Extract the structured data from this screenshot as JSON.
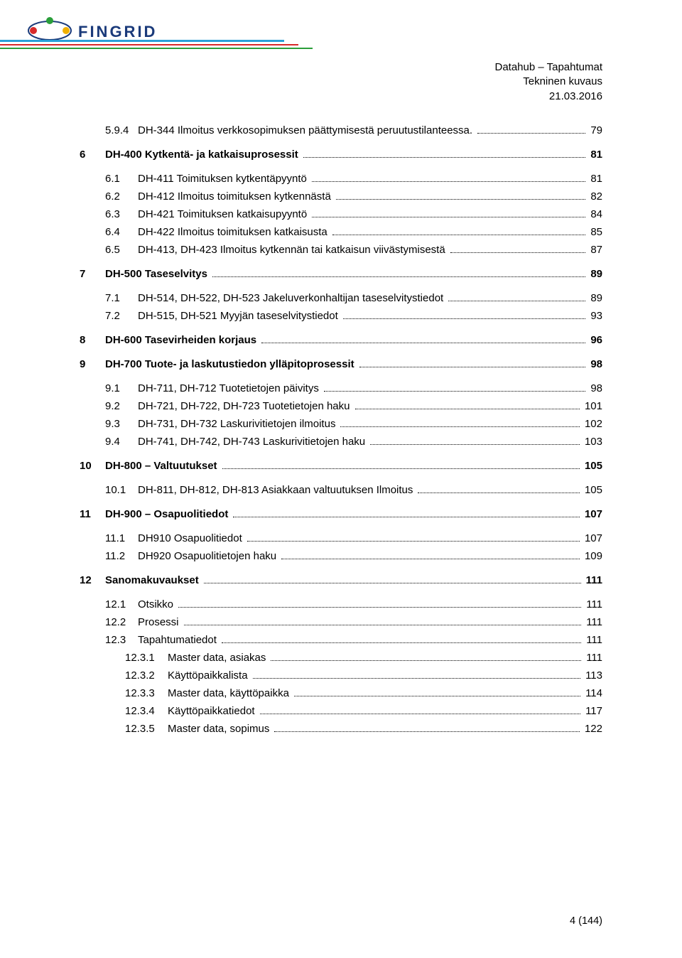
{
  "header": {
    "line1": "Datahub – Tapahtumat",
    "line2": "Tekninen kuvaus",
    "line3": "21.03.2016"
  },
  "logo": {
    "text": "FINGRID",
    "text_color": "#1a3a7a",
    "dot_top_color": "#2a9e3a",
    "dot_left_color": "#d82a2a",
    "dot_right_color": "#f0b000",
    "swoosh_colors": [
      "#2aa0d8",
      "#d82a2a",
      "#2a9e3a"
    ]
  },
  "toc": [
    {
      "lvl": 2,
      "num": "5.9.4",
      "label": "DH-344 Ilmoitus verkkosopimuksen päättymisestä peruutustilanteessa.",
      "page": "79",
      "bold": false
    },
    {
      "lvl": 1,
      "num": "6",
      "label": "DH-400 Kytkentä- ja katkaisuprosessit",
      "page": "81",
      "bold": true,
      "gap": true
    },
    {
      "lvl": 2,
      "num": "6.1",
      "label": "DH-411 Toimituksen kytkentäpyyntö",
      "page": "81",
      "bold": false,
      "gap": true
    },
    {
      "lvl": 2,
      "num": "6.2",
      "label": "DH-412 Ilmoitus toimituksen kytkennästä",
      "page": "82",
      "bold": false
    },
    {
      "lvl": 2,
      "num": "6.3",
      "label": "DH-421 Toimituksen katkaisupyyntö",
      "page": "84",
      "bold": false
    },
    {
      "lvl": 2,
      "num": "6.4",
      "label": "DH-422 Ilmoitus toimituksen katkaisusta",
      "page": "85",
      "bold": false
    },
    {
      "lvl": 2,
      "num": "6.5",
      "label": "DH-413, DH-423 Ilmoitus kytkennän tai katkaisun viivästymisestä",
      "page": "87",
      "bold": false
    },
    {
      "lvl": 1,
      "num": "7",
      "label": "DH-500 Taseselvitys",
      "page": "89",
      "bold": true,
      "gap": true
    },
    {
      "lvl": 2,
      "num": "7.1",
      "label": "DH-514, DH-522, DH-523 Jakeluverkonhaltijan taseselvitystiedot",
      "page": "89",
      "bold": false,
      "gap": true
    },
    {
      "lvl": 2,
      "num": "7.2",
      "label": "DH-515, DH-521 Myyjän taseselvitystiedot",
      "page": "93",
      "bold": false
    },
    {
      "lvl": 1,
      "num": "8",
      "label": "DH-600 Tasevirheiden korjaus",
      "page": "96",
      "bold": true,
      "gap": true
    },
    {
      "lvl": 1,
      "num": "9",
      "label": "DH-700 Tuote- ja laskutustiedon ylläpitoprosessit",
      "page": "98",
      "bold": true,
      "gap": true
    },
    {
      "lvl": 2,
      "num": "9.1",
      "label": "DH-711, DH-712 Tuotetietojen päivitys",
      "page": "98",
      "bold": false,
      "gap": true
    },
    {
      "lvl": 2,
      "num": "9.2",
      "label": "DH-721, DH-722, DH-723 Tuotetietojen haku",
      "page": "101",
      "bold": false
    },
    {
      "lvl": 2,
      "num": "9.3",
      "label": "DH-731, DH-732 Laskurivitietojen ilmoitus",
      "page": "102",
      "bold": false
    },
    {
      "lvl": 2,
      "num": "9.4",
      "label": "DH-741, DH-742, DH-743 Laskurivitietojen haku",
      "page": "103",
      "bold": false
    },
    {
      "lvl": 1,
      "num": "10",
      "label": "DH-800 – Valtuutukset",
      "page": "105",
      "bold": true,
      "gap": true
    },
    {
      "lvl": 2,
      "num": "10.1",
      "label": "DH-811, DH-812, DH-813 Asiakkaan valtuutuksen Ilmoitus",
      "page": "105",
      "bold": false,
      "gap": true
    },
    {
      "lvl": 1,
      "num": "11",
      "label": "DH-900 – Osapuolitiedot",
      "page": "107",
      "bold": true,
      "gap": true
    },
    {
      "lvl": 2,
      "num": "11.1",
      "label": "DH910 Osapuolitiedot",
      "page": "107",
      "bold": false,
      "gap": true
    },
    {
      "lvl": 2,
      "num": "11.2",
      "label": "DH920 Osapuolitietojen haku",
      "page": "109",
      "bold": false
    },
    {
      "lvl": 1,
      "num": "12",
      "label": "Sanomakuvaukset",
      "page": "111",
      "bold": true,
      "gap": true
    },
    {
      "lvl": 2,
      "num": "12.1",
      "label": "Otsikko",
      "page": "111",
      "bold": false,
      "gap": true
    },
    {
      "lvl": 2,
      "num": "12.2",
      "label": "Prosessi",
      "page": "111",
      "bold": false
    },
    {
      "lvl": 2,
      "num": "12.3",
      "label": "Tapahtumatiedot",
      "page": "111",
      "bold": false
    },
    {
      "lvl": 3,
      "num": "12.3.1",
      "label": "Master data, asiakas",
      "page": "111",
      "bold": false
    },
    {
      "lvl": 3,
      "num": "12.3.2",
      "label": "Käyttöpaikkalista",
      "page": "113",
      "bold": false
    },
    {
      "lvl": 3,
      "num": "12.3.3",
      "label": "Master data, käyttöpaikka",
      "page": "114",
      "bold": false
    },
    {
      "lvl": 3,
      "num": "12.3.4",
      "label": "Käyttöpaikkatiedot",
      "page": "117",
      "bold": false
    },
    {
      "lvl": 3,
      "num": "12.3.5",
      "label": "Master data, sopimus",
      "page": "122",
      "bold": false
    }
  ],
  "footer": "4 (144)"
}
